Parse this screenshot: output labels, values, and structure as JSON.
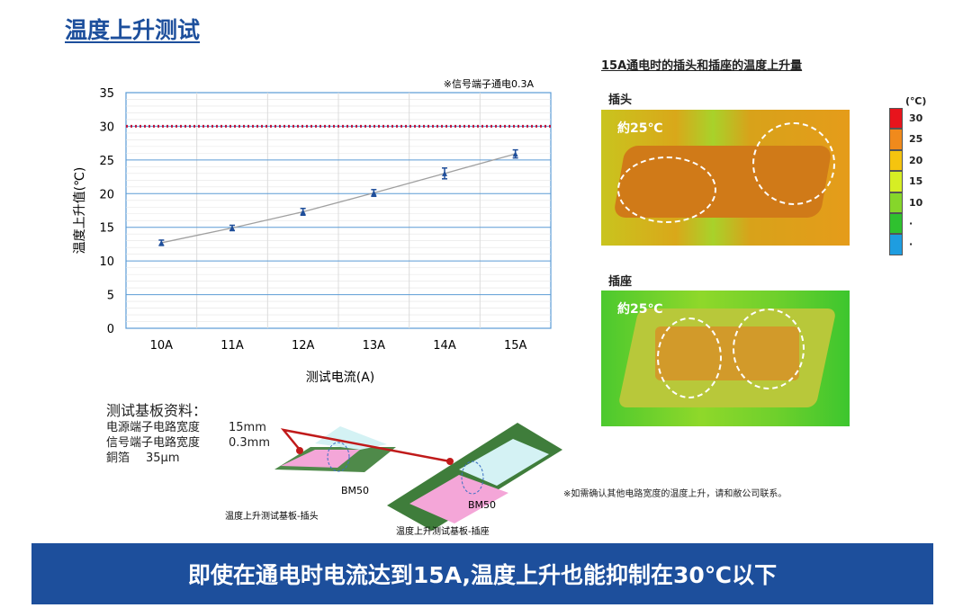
{
  "title": "温度上升测试",
  "chart_data": {
    "type": "line",
    "categories": [
      "10A",
      "11A",
      "12A",
      "13A",
      "14A",
      "15A"
    ],
    "values": [
      12.7,
      14.9,
      17.3,
      20.1,
      23.0,
      25.9
    ],
    "error": [
      0.4,
      0.4,
      0.5,
      0.5,
      0.8,
      0.6
    ],
    "ylabel": "温度上升值(℃)",
    "xlabel": "测试电流(A)",
    "ylim": [
      0,
      35
    ],
    "yticks": [
      0,
      5,
      10,
      15,
      20,
      25,
      30,
      35
    ],
    "limit_line": 30,
    "note": "※信号端子通电0.3A",
    "grid": true,
    "colors": {
      "line": "#a0a0a0",
      "marker": "#1f4e9a",
      "limit": "#c0143c",
      "grid": "#5b9bd5"
    }
  },
  "right": {
    "title": "15A通电时的插头和插座的温度上升量",
    "plug_label": "插头",
    "socket_label": "插座",
    "temp_note": "約25℃",
    "scale_unit": "(℃)",
    "scale": [
      {
        "label": "30",
        "color": "#e8141c"
      },
      {
        "label": "25",
        "color": "#f08a1c"
      },
      {
        "label": "20",
        "color": "#f5c40f"
      },
      {
        "label": "15",
        "color": "#d6ee24"
      },
      {
        "label": "10",
        "color": "#86d62a"
      },
      {
        "label": "·",
        "color": "#2fc12f"
      },
      {
        "label": "·",
        "color": "#1e9de0"
      }
    ],
    "contact_note": "※如需确认其他电路宽度的温度上升，请和敝公司联系。"
  },
  "spec": {
    "heading": "测试基板资料：",
    "rows": [
      [
        "电源端子电路宽度",
        "15mm"
      ],
      [
        "信号端子电路宽度",
        "0.3mm"
      ],
      [
        "銅箔",
        "35μm"
      ]
    ]
  },
  "boards": {
    "bm1": "BM50",
    "bm2": "BM50",
    "plug_caption": "温度上升测试基板-插头",
    "socket_caption": "温度上升测试基板-插座"
  },
  "banner": "即使在通电时电流达到15A,温度上升也能抑制在30℃以下"
}
